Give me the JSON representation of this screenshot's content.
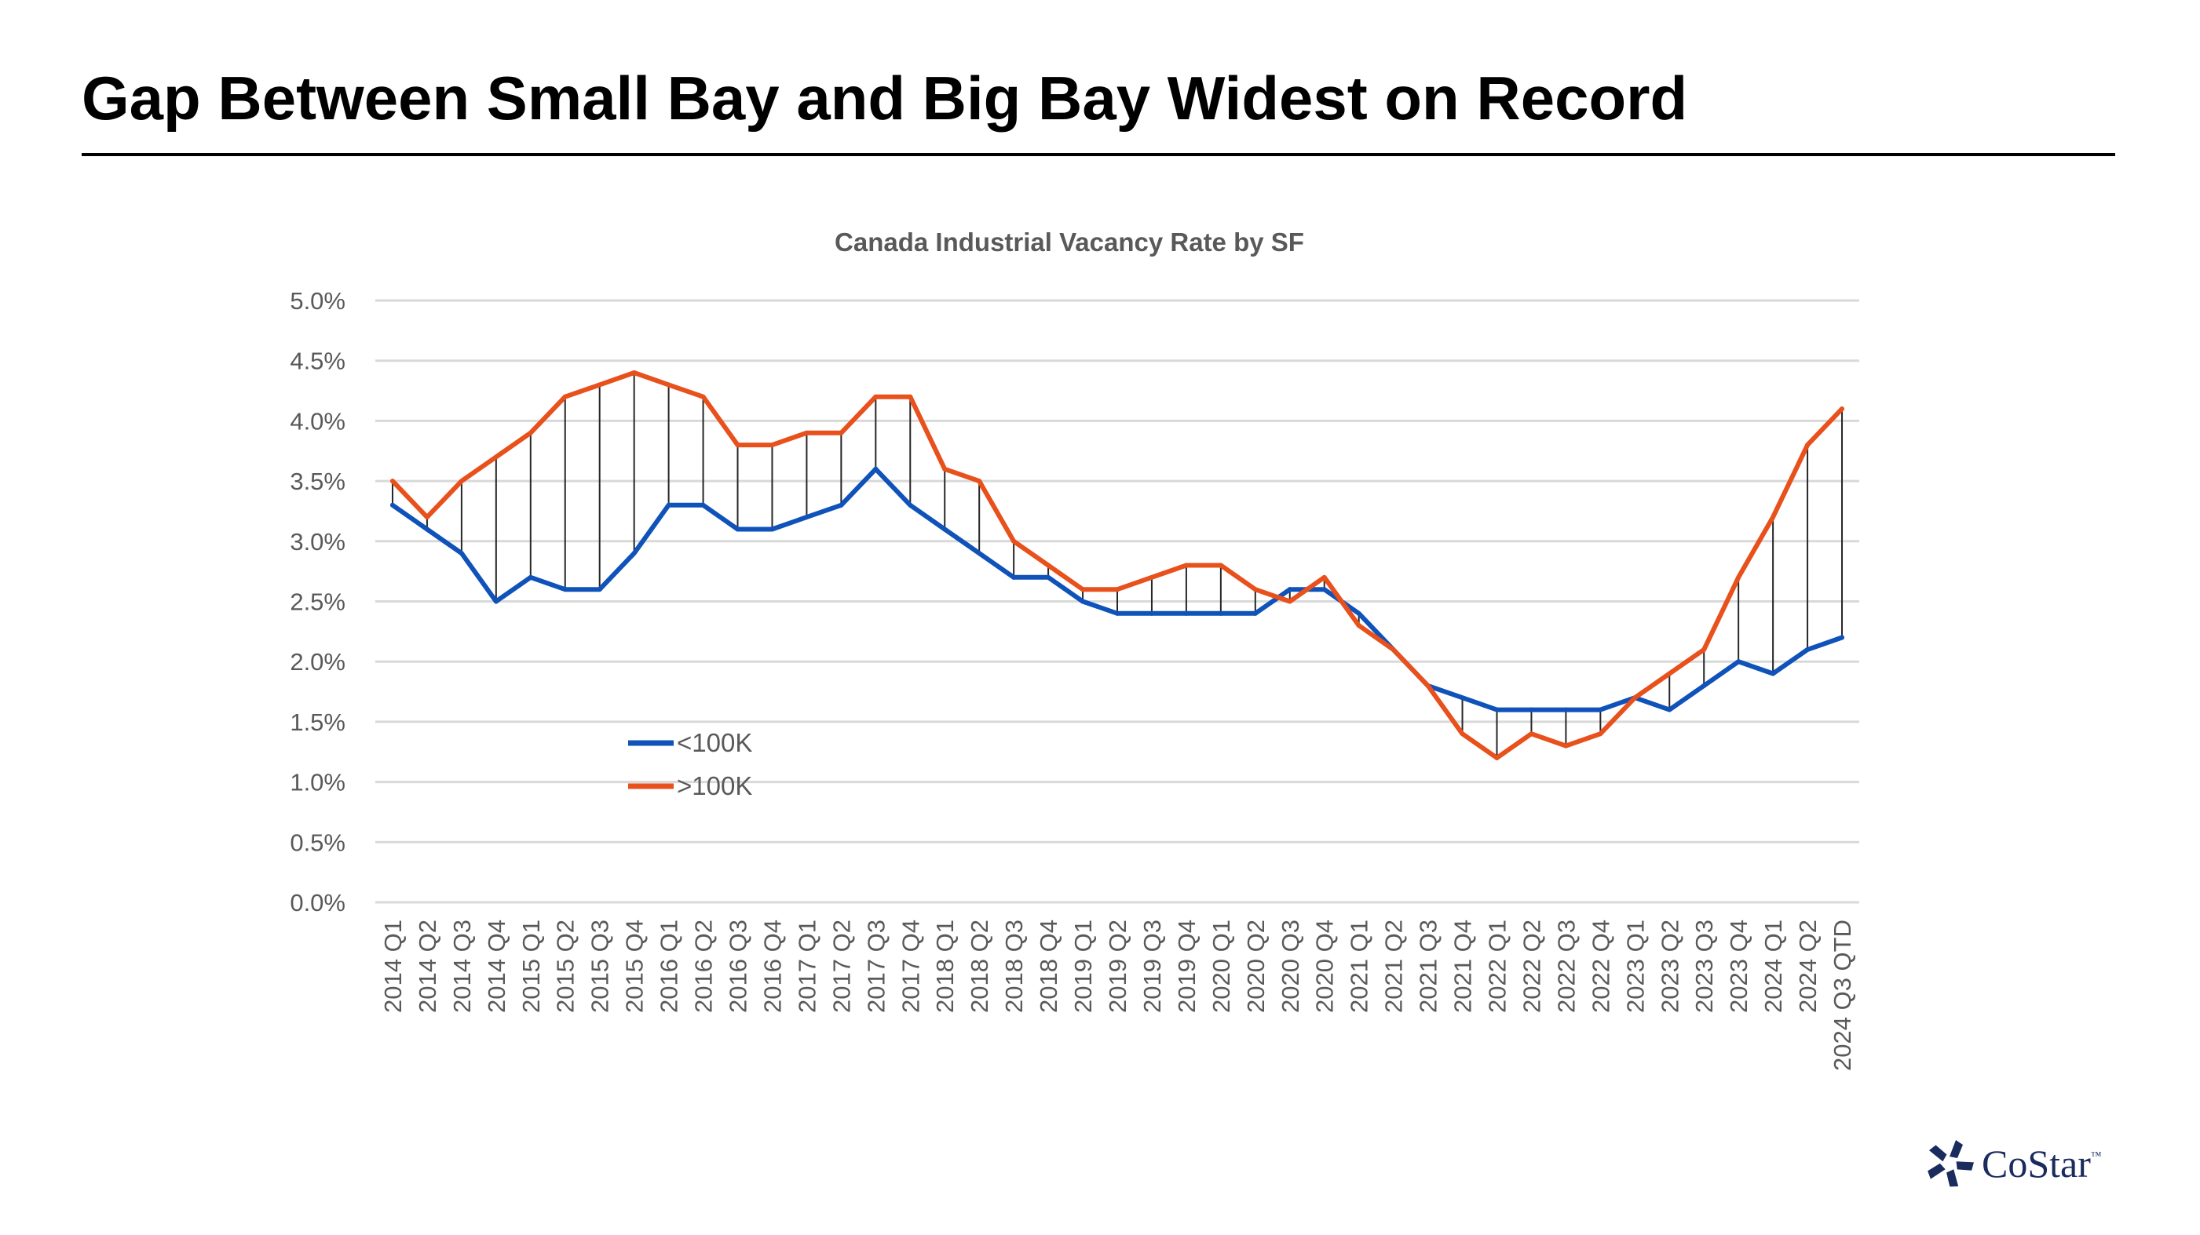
{
  "page": {
    "title": "Gap Between Small Bay and Big Bay Widest on Record"
  },
  "brand": {
    "name": "CoStar",
    "tm": "™",
    "logo_color": "#1a2b5e"
  },
  "chart_data": {
    "type": "line",
    "title": "Canada Industrial Vacancy Rate by SF",
    "xlabel": "",
    "ylabel": "",
    "ylim": [
      0,
      0.05
    ],
    "ytick_values": [
      0,
      0.005,
      0.01,
      0.015,
      0.02,
      0.025,
      0.03,
      0.035,
      0.04,
      0.045,
      0.05
    ],
    "ytick_labels": [
      "0.0%",
      "0.5%",
      "1.0%",
      "1.5%",
      "2.0%",
      "2.5%",
      "3.0%",
      "3.5%",
      "4.0%",
      "4.5%",
      "5.0%"
    ],
    "grid": true,
    "legend_position": "left-center",
    "high_low_lines": true,
    "categories": [
      "2014 Q1",
      "2014 Q2",
      "2014 Q3",
      "2014 Q4",
      "2015 Q1",
      "2015 Q2",
      "2015 Q3",
      "2015 Q4",
      "2016 Q1",
      "2016 Q2",
      "2016 Q3",
      "2016 Q4",
      "2017 Q1",
      "2017 Q2",
      "2017 Q3",
      "2017 Q4",
      "2018 Q1",
      "2018 Q2",
      "2018 Q3",
      "2018 Q4",
      "2019 Q1",
      "2019 Q2",
      "2019 Q3",
      "2019 Q4",
      "2020 Q1",
      "2020 Q2",
      "2020 Q3",
      "2020 Q4",
      "2021 Q1",
      "2021 Q2",
      "2021 Q3",
      "2021 Q4",
      "2022 Q1",
      "2022 Q2",
      "2022 Q3",
      "2022 Q4",
      "2023 Q1",
      "2023 Q2",
      "2023 Q3",
      "2023 Q4",
      "2024 Q1",
      "2024 Q2",
      "2024 Q3 QTD"
    ],
    "series": [
      {
        "name": "<100K",
        "color": "#0f52ba",
        "values": [
          0.033,
          0.031,
          0.029,
          0.025,
          0.027,
          0.026,
          0.026,
          0.029,
          0.033,
          0.033,
          0.031,
          0.031,
          0.032,
          0.033,
          0.036,
          0.033,
          0.031,
          0.029,
          0.027,
          0.027,
          0.025,
          0.024,
          0.024,
          0.024,
          0.024,
          0.024,
          0.026,
          0.026,
          0.024,
          0.021,
          0.018,
          0.017,
          0.016,
          0.016,
          0.016,
          0.016,
          0.017,
          0.016,
          0.018,
          0.02,
          0.019,
          0.021,
          0.022
        ]
      },
      {
        "name": ">100K",
        "color": "#e8501c",
        "values": [
          0.035,
          0.032,
          0.035,
          0.037,
          0.039,
          0.042,
          0.043,
          0.044,
          0.043,
          0.042,
          0.038,
          0.038,
          0.039,
          0.039,
          0.042,
          0.042,
          0.036,
          0.035,
          0.03,
          0.028,
          0.026,
          0.026,
          0.027,
          0.028,
          0.028,
          0.026,
          0.025,
          0.027,
          0.023,
          0.021,
          0.018,
          0.014,
          0.012,
          0.014,
          0.013,
          0.014,
          0.017,
          0.019,
          0.021,
          0.027,
          0.032,
          0.038,
          0.041
        ]
      }
    ]
  }
}
